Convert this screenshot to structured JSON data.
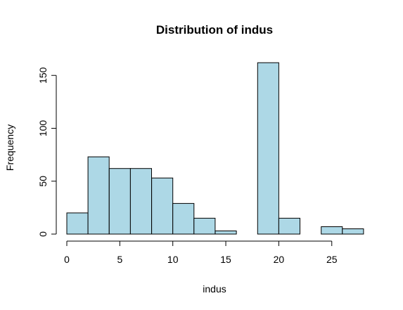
{
  "chart_data": {
    "type": "bar",
    "title": "Distribution of indus",
    "xlabel": "indus",
    "ylabel": "Frequency",
    "bins": [
      {
        "from": 0,
        "to": 2,
        "count": 20
      },
      {
        "from": 2,
        "to": 4,
        "count": 73
      },
      {
        "from": 4,
        "to": 6,
        "count": 62
      },
      {
        "from": 6,
        "to": 8,
        "count": 62
      },
      {
        "from": 8,
        "to": 10,
        "count": 53
      },
      {
        "from": 10,
        "to": 12,
        "count": 29
      },
      {
        "from": 12,
        "to": 14,
        "count": 15
      },
      {
        "from": 14,
        "to": 16,
        "count": 3
      },
      {
        "from": 16,
        "to": 18,
        "count": 0
      },
      {
        "from": 18,
        "to": 20,
        "count": 162
      },
      {
        "from": 20,
        "to": 22,
        "count": 15
      },
      {
        "from": 22,
        "to": 24,
        "count": 0
      },
      {
        "from": 24,
        "to": 26,
        "count": 7
      },
      {
        "from": 26,
        "to": 28,
        "count": 5
      }
    ],
    "xlim": [
      0,
      28
    ],
    "ylim": [
      0,
      162
    ],
    "xticks": [
      0,
      5,
      10,
      15,
      20,
      25
    ],
    "yticks": [
      0,
      50,
      100,
      150
    ],
    "bar_color": "#add8e6",
    "grid": false
  }
}
